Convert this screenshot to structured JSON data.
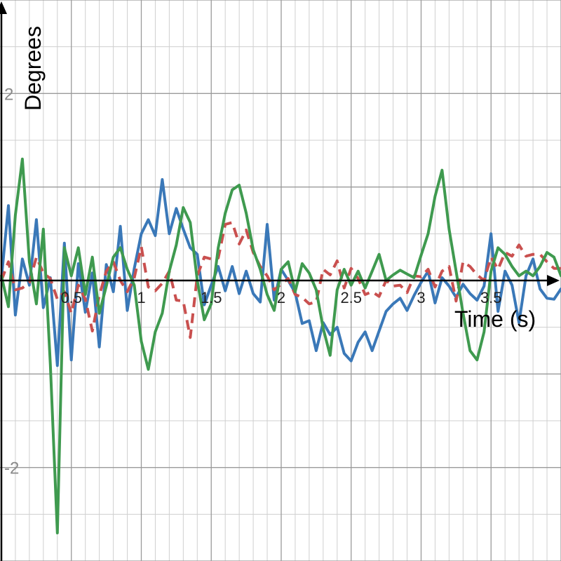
{
  "chart_data": {
    "type": "line",
    "xlabel": "Time (s)",
    "ylabel": "Degrees",
    "xlim": [
      -0.01,
      4.0
    ],
    "ylim": [
      -3,
      3
    ],
    "x_ticks": [
      0.5,
      1,
      1.5,
      2,
      2.5,
      3,
      3.5
    ],
    "x_tick_labels": [
      "0.5",
      "1",
      "1.5",
      "2",
      "2.5",
      "3",
      "3.5"
    ],
    "y_ticks": [
      2,
      -2
    ],
    "y_tick_labels": [
      "2",
      "-2"
    ],
    "minor_step_x": 0.1,
    "minor_step_y": 0.5,
    "grid": true,
    "colors": {
      "blue": "#3a78b8",
      "red": "#c9504f",
      "green": "#3f9a4f",
      "axis": "#000000",
      "major_grid": "#9a9a9a",
      "minor_grid": "#cfcfcf"
    },
    "series": [
      {
        "color": "#3a78b8",
        "dash": false,
        "x": [
          0,
          0.05,
          0.1,
          0.15,
          0.2,
          0.25,
          0.3,
          0.35,
          0.4,
          0.45,
          0.5,
          0.55,
          0.6,
          0.65,
          0.7,
          0.75,
          0.8,
          0.85,
          0.9,
          0.95,
          1.0,
          1.05,
          1.1,
          1.15,
          1.2,
          1.25,
          1.3,
          1.35,
          1.4,
          1.45,
          1.5,
          1.55,
          1.6,
          1.65,
          1.7,
          1.75,
          1.8,
          1.85,
          1.9,
          1.95,
          2.0,
          2.05,
          2.1,
          2.15,
          2.2,
          2.25,
          2.3,
          2.35,
          2.4,
          2.45,
          2.5,
          2.55,
          2.6,
          2.65,
          2.7,
          2.75,
          2.8,
          2.85,
          2.9,
          2.95,
          3.0,
          3.05,
          3.1,
          3.15,
          3.2,
          3.25,
          3.3,
          3.35,
          3.4,
          3.45,
          3.5,
          3.55,
          3.6,
          3.65,
          3.7,
          3.75,
          3.8,
          3.85,
          3.9,
          3.95,
          4.0
        ],
        "y": [
          0.02,
          0.8,
          -0.37,
          0.23,
          -0.05,
          0.65,
          -0.29,
          0.03,
          -0.91,
          0.4,
          -0.85,
          0.18,
          -0.34,
          0.08,
          -0.71,
          0.17,
          -0.12,
          0.58,
          -0.32,
          0.13,
          0.5,
          0.65,
          0.48,
          1.08,
          0.5,
          0.77,
          0.55,
          0.35,
          0.28,
          -0.26,
          -0.05,
          0.15,
          -0.11,
          0.15,
          -0.14,
          0.1,
          -0.14,
          -0.23,
          0.6,
          -0.21,
          0.12,
          0.0,
          -0.13,
          -0.46,
          -0.43,
          -0.75,
          -0.45,
          -0.58,
          -0.5,
          -0.78,
          -0.86,
          -0.66,
          -0.55,
          -0.75,
          -0.54,
          -0.33,
          -0.25,
          -0.19,
          -0.32,
          -0.16,
          -0.02,
          0.1,
          -0.24,
          0.03,
          -0.06,
          -0.18,
          -0.04,
          -0.14,
          -0.21,
          -0.06,
          0.5,
          -0.33,
          0.1,
          -0.05,
          -0.45,
          0.05,
          0.23,
          -0.09,
          -0.19,
          -0.2,
          -0.09
        ]
      },
      {
        "color": "#c9504f",
        "dash": true,
        "x": [
          0,
          0.05,
          0.1,
          0.15,
          0.2,
          0.25,
          0.3,
          0.35,
          0.4,
          0.45,
          0.5,
          0.55,
          0.6,
          0.65,
          0.7,
          0.75,
          0.8,
          0.85,
          0.9,
          0.95,
          1.0,
          1.05,
          1.1,
          1.15,
          1.2,
          1.25,
          1.3,
          1.35,
          1.4,
          1.45,
          1.5,
          1.55,
          1.6,
          1.65,
          1.7,
          1.75,
          1.8,
          1.85,
          1.9,
          1.95,
          2.0,
          2.05,
          2.1,
          2.15,
          2.2,
          2.25,
          2.3,
          2.35,
          2.4,
          2.45,
          2.5,
          2.55,
          2.6,
          2.65,
          2.7,
          2.75,
          2.8,
          2.85,
          2.9,
          2.95,
          3.0,
          3.05,
          3.1,
          3.15,
          3.2,
          3.25,
          3.3,
          3.35,
          3.4,
          3.45,
          3.5,
          3.55,
          3.6,
          3.65,
          3.7,
          3.75,
          3.8,
          3.85,
          3.9,
          3.95,
          4.0
        ],
        "y": [
          0.0,
          0.2,
          -0.1,
          -0.08,
          -0.02,
          0.25,
          0.08,
          0.02,
          -0.2,
          -0.12,
          -0.35,
          -0.05,
          -0.2,
          -0.54,
          -0.16,
          0.1,
          0.2,
          0.0,
          -0.12,
          0.03,
          0.36,
          -0.07,
          -0.11,
          -0.03,
          0.1,
          -0.21,
          -0.22,
          -0.61,
          0.05,
          0.25,
          0.23,
          0.24,
          0.6,
          0.62,
          0.39,
          0.54,
          0.3,
          0.15,
          0.05,
          -0.1,
          -0.04,
          0.02,
          -0.15,
          -0.18,
          -0.25,
          -0.23,
          0.12,
          0.06,
          0.21,
          -0.08,
          0.13,
          0.02,
          -0.15,
          -0.12,
          -0.17,
          0.0,
          -0.06,
          -0.05,
          -0.13,
          0.05,
          0.04,
          0.12,
          -0.07,
          0.1,
          0.15,
          -0.22,
          0.2,
          0.15,
          0.06,
          0.0,
          0.25,
          0.12,
          0.3,
          0.26,
          0.38,
          0.26,
          0.28,
          0.28,
          0.2,
          0.13,
          0.13
        ]
      },
      {
        "color": "#3f9a4f",
        "dash": false,
        "x": [
          0,
          0.05,
          0.1,
          0.15,
          0.2,
          0.25,
          0.3,
          0.35,
          0.4,
          0.45,
          0.5,
          0.55,
          0.6,
          0.65,
          0.7,
          0.75,
          0.8,
          0.85,
          0.9,
          0.95,
          1.0,
          1.05,
          1.1,
          1.15,
          1.2,
          1.25,
          1.3,
          1.35,
          1.4,
          1.45,
          1.5,
          1.55,
          1.6,
          1.65,
          1.7,
          1.75,
          1.8,
          1.85,
          1.9,
          1.95,
          2.0,
          2.05,
          2.1,
          2.15,
          2.2,
          2.25,
          2.3,
          2.35,
          2.4,
          2.45,
          2.5,
          2.55,
          2.6,
          2.65,
          2.7,
          2.75,
          2.8,
          2.85,
          2.9,
          2.95,
          3.0,
          3.05,
          3.1,
          3.15,
          3.2,
          3.25,
          3.3,
          3.35,
          3.4,
          3.45,
          3.5,
          3.55,
          3.6,
          3.65,
          3.7,
          3.75,
          3.8,
          3.85,
          3.9,
          3.95,
          4.0
        ],
        "y": [
          0.05,
          -0.28,
          0.7,
          1.3,
          0.2,
          -0.25,
          0.55,
          -0.9,
          -2.7,
          0.35,
          0.05,
          0.35,
          -0.15,
          0.25,
          -0.35,
          -0.06,
          0.25,
          0.35,
          0.12,
          -0.05,
          -0.65,
          -0.95,
          -0.55,
          -0.35,
          0.1,
          0.38,
          0.78,
          0.62,
          0.0,
          -0.42,
          -0.25,
          0.35,
          0.72,
          0.97,
          1.02,
          0.72,
          0.33,
          0.12,
          -0.15,
          -0.32,
          0.12,
          0.2,
          -0.12,
          0.18,
          0.08,
          -0.1,
          -0.51,
          -0.8,
          -0.1,
          0.12,
          -0.05,
          0.1,
          -0.08,
          0.1,
          0.28,
          0.0,
          0.06,
          0.11,
          0.07,
          0.03,
          0.27,
          0.5,
          0.9,
          1.18,
          0.55,
          0.1,
          -0.35,
          -0.75,
          -0.85,
          -0.55,
          0.1,
          0.35,
          0.28,
          0.15,
          0.05,
          0.1,
          0.05,
          0.15,
          0.3,
          0.25,
          0.05
        ]
      }
    ]
  }
}
